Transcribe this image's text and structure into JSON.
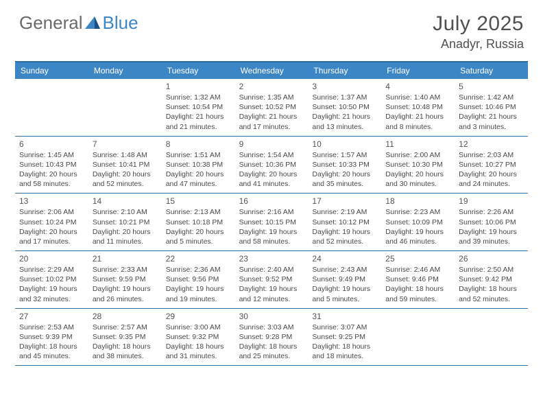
{
  "brand": {
    "part1": "General",
    "part2": "Blue"
  },
  "title": {
    "monthYear": "July 2025",
    "location": "Anadyr, Russia"
  },
  "colors": {
    "header_bg": "#3d86c6",
    "border": "#2f6fa8",
    "text": "#3a3a3a",
    "brand_gray": "#6a6a6a",
    "brand_blue": "#3d86c6"
  },
  "dayHeaders": [
    "Sunday",
    "Monday",
    "Tuesday",
    "Wednesday",
    "Thursday",
    "Friday",
    "Saturday"
  ],
  "weeks": [
    [
      {
        "n": "",
        "sr": "",
        "ss": "",
        "dl1": "",
        "dl2": ""
      },
      {
        "n": "",
        "sr": "",
        "ss": "",
        "dl1": "",
        "dl2": ""
      },
      {
        "n": "1",
        "sr": "Sunrise: 1:32 AM",
        "ss": "Sunset: 10:54 PM",
        "dl1": "Daylight: 21 hours",
        "dl2": "and 21 minutes."
      },
      {
        "n": "2",
        "sr": "Sunrise: 1:35 AM",
        "ss": "Sunset: 10:52 PM",
        "dl1": "Daylight: 21 hours",
        "dl2": "and 17 minutes."
      },
      {
        "n": "3",
        "sr": "Sunrise: 1:37 AM",
        "ss": "Sunset: 10:50 PM",
        "dl1": "Daylight: 21 hours",
        "dl2": "and 13 minutes."
      },
      {
        "n": "4",
        "sr": "Sunrise: 1:40 AM",
        "ss": "Sunset: 10:48 PM",
        "dl1": "Daylight: 21 hours",
        "dl2": "and 8 minutes."
      },
      {
        "n": "5",
        "sr": "Sunrise: 1:42 AM",
        "ss": "Sunset: 10:46 PM",
        "dl1": "Daylight: 21 hours",
        "dl2": "and 3 minutes."
      }
    ],
    [
      {
        "n": "6",
        "sr": "Sunrise: 1:45 AM",
        "ss": "Sunset: 10:43 PM",
        "dl1": "Daylight: 20 hours",
        "dl2": "and 58 minutes."
      },
      {
        "n": "7",
        "sr": "Sunrise: 1:48 AM",
        "ss": "Sunset: 10:41 PM",
        "dl1": "Daylight: 20 hours",
        "dl2": "and 52 minutes."
      },
      {
        "n": "8",
        "sr": "Sunrise: 1:51 AM",
        "ss": "Sunset: 10:38 PM",
        "dl1": "Daylight: 20 hours",
        "dl2": "and 47 minutes."
      },
      {
        "n": "9",
        "sr": "Sunrise: 1:54 AM",
        "ss": "Sunset: 10:36 PM",
        "dl1": "Daylight: 20 hours",
        "dl2": "and 41 minutes."
      },
      {
        "n": "10",
        "sr": "Sunrise: 1:57 AM",
        "ss": "Sunset: 10:33 PM",
        "dl1": "Daylight: 20 hours",
        "dl2": "and 35 minutes."
      },
      {
        "n": "11",
        "sr": "Sunrise: 2:00 AM",
        "ss": "Sunset: 10:30 PM",
        "dl1": "Daylight: 20 hours",
        "dl2": "and 30 minutes."
      },
      {
        "n": "12",
        "sr": "Sunrise: 2:03 AM",
        "ss": "Sunset: 10:27 PM",
        "dl1": "Daylight: 20 hours",
        "dl2": "and 24 minutes."
      }
    ],
    [
      {
        "n": "13",
        "sr": "Sunrise: 2:06 AM",
        "ss": "Sunset: 10:24 PM",
        "dl1": "Daylight: 20 hours",
        "dl2": "and 17 minutes."
      },
      {
        "n": "14",
        "sr": "Sunrise: 2:10 AM",
        "ss": "Sunset: 10:21 PM",
        "dl1": "Daylight: 20 hours",
        "dl2": "and 11 minutes."
      },
      {
        "n": "15",
        "sr": "Sunrise: 2:13 AM",
        "ss": "Sunset: 10:18 PM",
        "dl1": "Daylight: 20 hours",
        "dl2": "and 5 minutes."
      },
      {
        "n": "16",
        "sr": "Sunrise: 2:16 AM",
        "ss": "Sunset: 10:15 PM",
        "dl1": "Daylight: 19 hours",
        "dl2": "and 58 minutes."
      },
      {
        "n": "17",
        "sr": "Sunrise: 2:19 AM",
        "ss": "Sunset: 10:12 PM",
        "dl1": "Daylight: 19 hours",
        "dl2": "and 52 minutes."
      },
      {
        "n": "18",
        "sr": "Sunrise: 2:23 AM",
        "ss": "Sunset: 10:09 PM",
        "dl1": "Daylight: 19 hours",
        "dl2": "and 46 minutes."
      },
      {
        "n": "19",
        "sr": "Sunrise: 2:26 AM",
        "ss": "Sunset: 10:06 PM",
        "dl1": "Daylight: 19 hours",
        "dl2": "and 39 minutes."
      }
    ],
    [
      {
        "n": "20",
        "sr": "Sunrise: 2:29 AM",
        "ss": "Sunset: 10:02 PM",
        "dl1": "Daylight: 19 hours",
        "dl2": "and 32 minutes."
      },
      {
        "n": "21",
        "sr": "Sunrise: 2:33 AM",
        "ss": "Sunset: 9:59 PM",
        "dl1": "Daylight: 19 hours",
        "dl2": "and 26 minutes."
      },
      {
        "n": "22",
        "sr": "Sunrise: 2:36 AM",
        "ss": "Sunset: 9:56 PM",
        "dl1": "Daylight: 19 hours",
        "dl2": "and 19 minutes."
      },
      {
        "n": "23",
        "sr": "Sunrise: 2:40 AM",
        "ss": "Sunset: 9:52 PM",
        "dl1": "Daylight: 19 hours",
        "dl2": "and 12 minutes."
      },
      {
        "n": "24",
        "sr": "Sunrise: 2:43 AM",
        "ss": "Sunset: 9:49 PM",
        "dl1": "Daylight: 19 hours",
        "dl2": "and 5 minutes."
      },
      {
        "n": "25",
        "sr": "Sunrise: 2:46 AM",
        "ss": "Sunset: 9:46 PM",
        "dl1": "Daylight: 18 hours",
        "dl2": "and 59 minutes."
      },
      {
        "n": "26",
        "sr": "Sunrise: 2:50 AM",
        "ss": "Sunset: 9:42 PM",
        "dl1": "Daylight: 18 hours",
        "dl2": "and 52 minutes."
      }
    ],
    [
      {
        "n": "27",
        "sr": "Sunrise: 2:53 AM",
        "ss": "Sunset: 9:39 PM",
        "dl1": "Daylight: 18 hours",
        "dl2": "and 45 minutes."
      },
      {
        "n": "28",
        "sr": "Sunrise: 2:57 AM",
        "ss": "Sunset: 9:35 PM",
        "dl1": "Daylight: 18 hours",
        "dl2": "and 38 minutes."
      },
      {
        "n": "29",
        "sr": "Sunrise: 3:00 AM",
        "ss": "Sunset: 9:32 PM",
        "dl1": "Daylight: 18 hours",
        "dl2": "and 31 minutes."
      },
      {
        "n": "30",
        "sr": "Sunrise: 3:03 AM",
        "ss": "Sunset: 9:28 PM",
        "dl1": "Daylight: 18 hours",
        "dl2": "and 25 minutes."
      },
      {
        "n": "31",
        "sr": "Sunrise: 3:07 AM",
        "ss": "Sunset: 9:25 PM",
        "dl1": "Daylight: 18 hours",
        "dl2": "and 18 minutes."
      },
      {
        "n": "",
        "sr": "",
        "ss": "",
        "dl1": "",
        "dl2": ""
      },
      {
        "n": "",
        "sr": "",
        "ss": "",
        "dl1": "",
        "dl2": ""
      }
    ]
  ]
}
